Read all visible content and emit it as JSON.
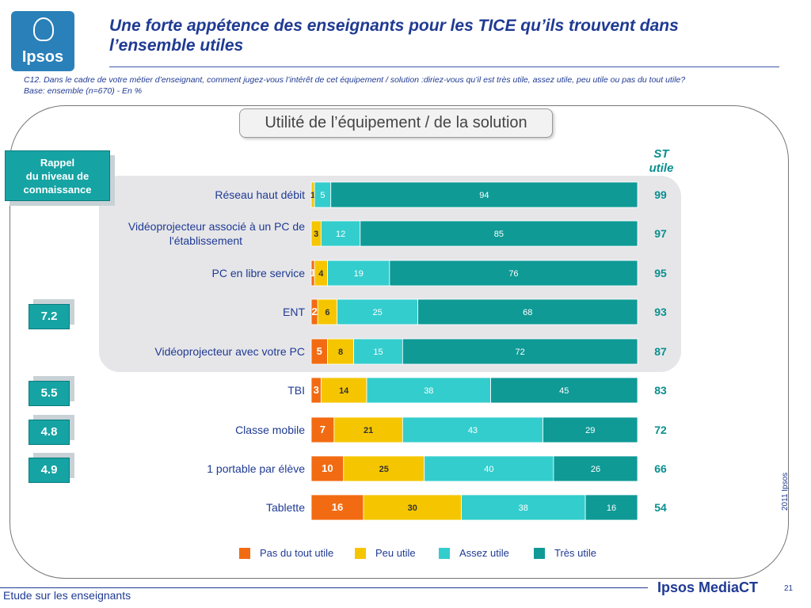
{
  "header": {
    "logo_text": "Ipsos",
    "title": "Une forte appétence des enseignants pour les TICE qu’ils trouvent dans l’ensemble utiles",
    "question": "C12. Dans le cadre de votre métier d’enseignant, comment jugez-vous l’intérêt de cet équipement / solution :diriez-vous qu’il est très utile, assez utile, peu utile ou pas du tout utile?",
    "base": "Base: ensemble (n=670) - En %"
  },
  "rappel": {
    "line1": "Rappel",
    "line2": "du niveau de",
    "line3": "connaissance"
  },
  "st_header": {
    "line1": "ST",
    "line2": "utile"
  },
  "scores": [
    "7.2",
    "5.5",
    "4.8",
    "4.9"
  ],
  "footer": {
    "study": "Etude sur les enseignants",
    "brand": "Ipsos MediaCT",
    "page": "21",
    "copyright": "2011 Ipsos"
  },
  "colors": {
    "pas_du_tout": "#f26b12",
    "peu": "#f5c600",
    "assez": "#34cdcd",
    "tres": "#0f9a96",
    "text": "#1f3a93",
    "st": "#0a8f8f"
  },
  "chart_data": {
    "type": "bar",
    "orientation": "horizontal",
    "stacked": true,
    "title": "Utilité de l’équipement / de la solution",
    "categories": [
      "Réseau haut débit",
      "Vidéoprojecteur associé à un PC de l'établissement",
      "PC en libre service",
      "ENT",
      "Vidéoprojecteur avec votre PC",
      "TBI",
      "Classe mobile",
      "1 portable par élève",
      "Tablette"
    ],
    "series": [
      {
        "name": "Pas du tout utile",
        "values": [
          0,
          0,
          1,
          2,
          5,
          3,
          7,
          10,
          16
        ]
      },
      {
        "name": "Peu utile",
        "values": [
          1,
          3,
          4,
          6,
          8,
          14,
          21,
          25,
          30
        ]
      },
      {
        "name": "Assez utile",
        "values": [
          5,
          12,
          19,
          25,
          15,
          38,
          43,
          40,
          38
        ]
      },
      {
        "name": "Très utile",
        "values": [
          94,
          85,
          76,
          68,
          72,
          45,
          29,
          26,
          16
        ]
      }
    ],
    "st_utile": [
      99,
      97,
      95,
      93,
      87,
      83,
      72,
      66,
      54
    ],
    "xlim": [
      0,
      100
    ],
    "legend_position": "bottom"
  }
}
